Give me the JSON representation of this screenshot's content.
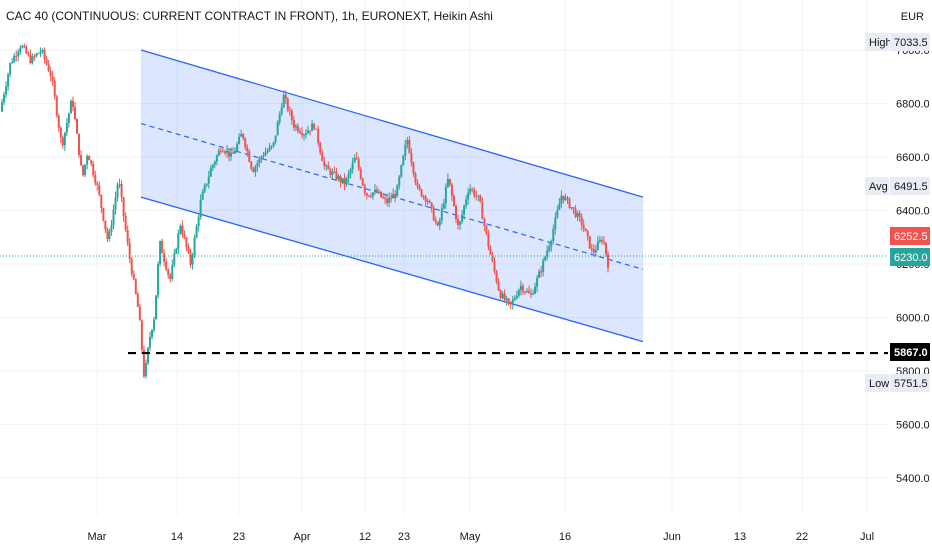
{
  "header": {
    "title": "CAC 40 (CONTINUOUS: CURRENT CONTRACT IN FRONT), 1h, EURONEXT, Heikin Ashi"
  },
  "currency": "EUR",
  "price_tags": {
    "high": {
      "label": "High",
      "value": "7033.5"
    },
    "avg": {
      "label": "Avg",
      "value": "6491.5"
    },
    "low": {
      "label": "Low",
      "value": "5751.5"
    },
    "last": {
      "value": "6252.5"
    },
    "current": {
      "value": "6230.0"
    },
    "support": {
      "value": "5867.0"
    }
  },
  "colors": {
    "up": "#26a69a",
    "down": "#ef5350",
    "channel": "#2962ff",
    "channel_fill": "rgba(41,98,255,0.16)",
    "support": "#000000",
    "last_tag": "#ef5350",
    "current_tag": "#26a69a",
    "grid": "#f0f3fa"
  },
  "chart_data": {
    "type": "candlestick",
    "style": "Heikin Ashi",
    "interval": "1h",
    "y_ticks": [
      "7000.0",
      "6800.0",
      "6600.0",
      "6400.0",
      "6200.0",
      "6000.0",
      "5800.0",
      "5600.0",
      "5400.0"
    ],
    "x_ticks": [
      "Mar",
      "14",
      "23",
      "Apr",
      "12",
      "23",
      "May",
      "16",
      "Jun",
      "13",
      "22",
      "Jul"
    ],
    "ylim": [
      5250,
      7200
    ],
    "price_path": [
      [
        0,
        6770
      ],
      [
        2,
        6950
      ],
      [
        4,
        7020
      ],
      [
        6,
        6960
      ],
      [
        8,
        7000
      ],
      [
        10,
        6900
      ],
      [
        12,
        6640
      ],
      [
        14,
        6820
      ],
      [
        16,
        6520
      ],
      [
        17,
        6620
      ],
      [
        19,
        6480
      ],
      [
        21,
        6280
      ],
      [
        23,
        6520
      ],
      [
        25,
        6240
      ],
      [
        27,
        6010
      ],
      [
        28,
        5770
      ],
      [
        29,
        5920
      ],
      [
        30,
        6010
      ],
      [
        31,
        6280
      ],
      [
        33,
        6140
      ],
      [
        35,
        6350
      ],
      [
        37,
        6200
      ],
      [
        39,
        6440
      ],
      [
        41,
        6560
      ],
      [
        43,
        6640
      ],
      [
        45,
        6600
      ],
      [
        47,
        6690
      ],
      [
        49,
        6550
      ],
      [
        51,
        6610
      ],
      [
        53,
        6640
      ],
      [
        55,
        6830
      ],
      [
        57,
        6720
      ],
      [
        59,
        6690
      ],
      [
        61,
        6720
      ],
      [
        63,
        6560
      ],
      [
        65,
        6530
      ],
      [
        67,
        6500
      ],
      [
        69,
        6600
      ],
      [
        71,
        6460
      ],
      [
        73,
        6470
      ],
      [
        75,
        6430
      ],
      [
        77,
        6470
      ],
      [
        79,
        6670
      ],
      [
        81,
        6480
      ],
      [
        83,
        6440
      ],
      [
        85,
        6330
      ],
      [
        87,
        6520
      ],
      [
        89,
        6330
      ],
      [
        91,
        6490
      ],
      [
        93,
        6440
      ],
      [
        95,
        6250
      ],
      [
        97,
        6090
      ],
      [
        99,
        6040
      ],
      [
        101,
        6120
      ],
      [
        103,
        6080
      ],
      [
        105,
        6180
      ],
      [
        107,
        6300
      ],
      [
        109,
        6460
      ],
      [
        111,
        6410
      ],
      [
        113,
        6350
      ],
      [
        115,
        6240
      ],
      [
        117,
        6300
      ],
      [
        118,
        6200
      ]
    ],
    "channel": {
      "upper": {
        "from": [
          "Mar 8",
          7000
        ],
        "to": [
          "May 26",
          6450
        ]
      },
      "lower": {
        "from": [
          "Mar 8",
          6450
        ],
        "to": [
          "May 26",
          5910
        ]
      },
      "median": {
        "from": [
          "Mar 8",
          6725
        ],
        "to": [
          "May 26",
          6180
        ]
      }
    },
    "support_level": 5867.0,
    "grid": true
  }
}
